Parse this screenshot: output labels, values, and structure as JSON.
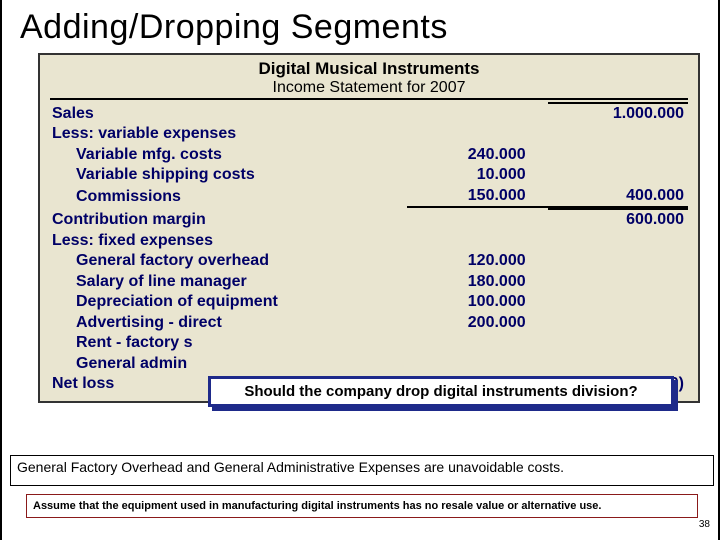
{
  "title": "Adding/Dropping Segments",
  "statement": {
    "company": "Digital Musical Instruments",
    "subtitle": "Income Statement for 2007",
    "rows": [
      {
        "label": "Sales",
        "col1": "",
        "col2": "1.000.000",
        "indent": false,
        "u2top": true
      },
      {
        "label": "Less: variable expenses",
        "col1": "",
        "col2": "",
        "indent": false
      },
      {
        "label": "Variable mfg. costs",
        "col1": "240.000",
        "col2": "",
        "indent": true
      },
      {
        "label": "Variable shipping costs",
        "col1": "10.000",
        "col2": "",
        "indent": true
      },
      {
        "label": "Commissions",
        "col1": "150.000",
        "col2": "400.000",
        "indent": true,
        "u1bot": true,
        "u2bot": true
      },
      {
        "label": "Contribution margin",
        "col1": "",
        "col2": "600.000",
        "indent": false,
        "u2top": true
      },
      {
        "label": "Less: fixed expenses",
        "col1": "",
        "col2": "",
        "indent": false
      },
      {
        "label": "General factory overhead",
        "col1": "120.000",
        "col2": "",
        "indent": true
      },
      {
        "label": "Salary of line manager",
        "col1": "180.000",
        "col2": "",
        "indent": true
      },
      {
        "label": "Depreciation of equipment",
        "col1": "100.000",
        "col2": "",
        "indent": true
      },
      {
        "label": "Advertising - direct",
        "col1": "200.000",
        "col2": "",
        "indent": true
      },
      {
        "label": "Rent - factory s",
        "col1": "",
        "col2": "",
        "indent": true
      },
      {
        "label": "General admin",
        "col1": "",
        "col2": "",
        "indent": true
      },
      {
        "label": "Net loss",
        "col1": "",
        "col2": "(200.000)",
        "indent": false
      }
    ]
  },
  "question": "Should the company drop digital instruments division?",
  "note1": "General Factory Overhead and General Administrative Expenses are unavoidable costs.",
  "note2": "Assume that the equipment used in manufacturing digital instruments has no resale value or alternative use.",
  "page": "38",
  "colors": {
    "callout_border": "#1e2a8a",
    "note2_border": "#8a1a1a",
    "statement_bg": "#e9e5d0",
    "text_navy": "#000066"
  }
}
